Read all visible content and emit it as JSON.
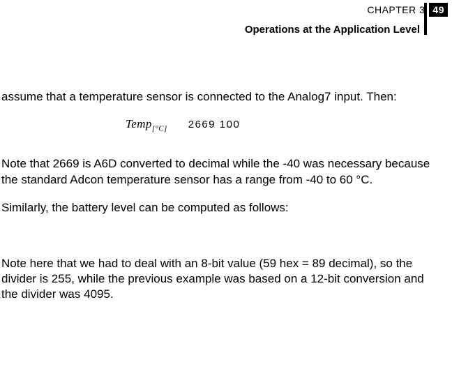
{
  "header": {
    "chapter_label": "CHAPTER 3",
    "page_number": "49",
    "section_title": "Operations at the Application Level"
  },
  "body": {
    "p1": "assume that a temperature sensor is connected to the Analog7 input. Then:",
    "formula": {
      "name": "Temp",
      "subscript": "[°C]",
      "numbers": "2669   100"
    },
    "p2": "Note that 2669 is A6D converted to decimal while the -40 was nec­essary because the standard Adcon temperature sensor has a range from -40 to 60 °C.",
    "p3": "Similarly, the battery level can be computed as follows:",
    "p4": "Note here that we had to deal with an 8-bit value (59 hex = 89 dec­imal), so the divider is 255, while the previous example was based on a 12-bit conversion and the divider was 4095."
  },
  "style": {
    "bg": "#ffffff",
    "text": "#000000",
    "accent_bg": "#000000",
    "accent_fg": "#ffffff",
    "body_fontsize": 17,
    "header_fontsize": 14
  }
}
